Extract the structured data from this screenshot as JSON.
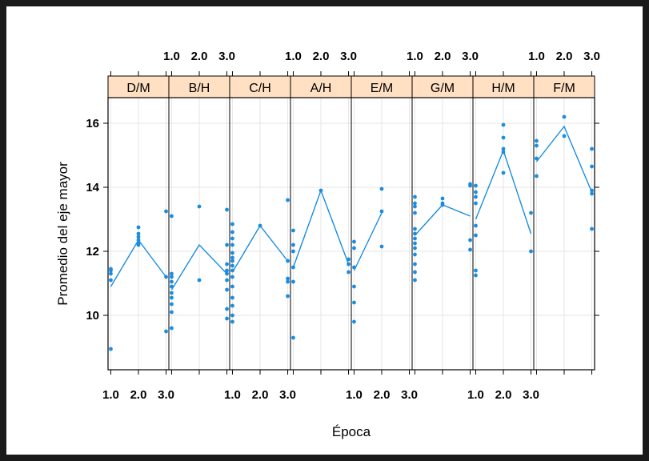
{
  "chart_data": {
    "type": "scatter",
    "xlabel": "Época",
    "ylabel": "Promedio del eje mayor",
    "x_ticks": [
      "1.0",
      "2.0",
      "3.0"
    ],
    "xlim": [
      0.9,
      3.1
    ],
    "ylim": [
      8.3,
      16.8
    ],
    "y_ticks": [
      10,
      12,
      14,
      16
    ],
    "grid": true,
    "colors": {
      "points": "#1a8de0",
      "line": "#1a8de0",
      "strip": "#ffe0c2",
      "grid": "#e6e6e6"
    },
    "panels": [
      {
        "label": "D/M",
        "line": [
          [
            1,
            10.9
          ],
          [
            2,
            12.35
          ],
          [
            3,
            11.2
          ]
        ],
        "points": [
          [
            1,
            11.45
          ],
          [
            1,
            11.4
          ],
          [
            1,
            11.3
          ],
          [
            1,
            11.1
          ],
          [
            1,
            8.95
          ],
          [
            2,
            12.75
          ],
          [
            2,
            12.55
          ],
          [
            2,
            12.45
          ],
          [
            2,
            12.35
          ],
          [
            2,
            12.25
          ],
          [
            2,
            12.2
          ],
          [
            3,
            13.25
          ],
          [
            3,
            11.2
          ],
          [
            3,
            9.5
          ]
        ]
      },
      {
        "label": "B/H",
        "line": [
          [
            1,
            10.8
          ],
          [
            2,
            12.2
          ],
          [
            3,
            11.3
          ]
        ],
        "points": [
          [
            1,
            13.1
          ],
          [
            1,
            11.3
          ],
          [
            1,
            11.2
          ],
          [
            1,
            11.05
          ],
          [
            1,
            10.9
          ],
          [
            1,
            10.7
          ],
          [
            1,
            10.55
          ],
          [
            1,
            10.35
          ],
          [
            1,
            10.1
          ],
          [
            1,
            9.6
          ],
          [
            2,
            13.4
          ],
          [
            2,
            11.1
          ],
          [
            3,
            13.3
          ],
          [
            3,
            12.2
          ],
          [
            3,
            11.6
          ],
          [
            3,
            11.4
          ],
          [
            3,
            11.3
          ],
          [
            3,
            11.1
          ],
          [
            3,
            10.8
          ],
          [
            3,
            10.2
          ],
          [
            3,
            9.9
          ]
        ]
      },
      {
        "label": "C/H",
        "line": [
          [
            1,
            11.35
          ],
          [
            2,
            12.8
          ],
          [
            3,
            11.7
          ]
        ],
        "points": [
          [
            1,
            12.85
          ],
          [
            1,
            12.6
          ],
          [
            1,
            12.4
          ],
          [
            1,
            12.2
          ],
          [
            1,
            11.95
          ],
          [
            1,
            11.8
          ],
          [
            1,
            11.7
          ],
          [
            1,
            11.55
          ],
          [
            1,
            11.4
          ],
          [
            1,
            11.2
          ],
          [
            1,
            10.9
          ],
          [
            1,
            10.55
          ],
          [
            1,
            10.3
          ],
          [
            1,
            10.0
          ],
          [
            1,
            9.8
          ],
          [
            2,
            12.8
          ],
          [
            3,
            13.6
          ],
          [
            3,
            11.7
          ],
          [
            3,
            11.15
          ],
          [
            3,
            11.05
          ],
          [
            3,
            10.6
          ]
        ]
      },
      {
        "label": "A/H",
        "line": [
          [
            1,
            11.5
          ],
          [
            2,
            13.9
          ],
          [
            3,
            11.6
          ]
        ],
        "points": [
          [
            1,
            12.65
          ],
          [
            1,
            12.2
          ],
          [
            1,
            12.0
          ],
          [
            1,
            11.5
          ],
          [
            1,
            11.05
          ],
          [
            1,
            9.3
          ],
          [
            2,
            13.9
          ],
          [
            3,
            11.75
          ],
          [
            3,
            11.6
          ],
          [
            3,
            11.35
          ]
        ]
      },
      {
        "label": "E/M",
        "line": [
          [
            1,
            11.4
          ],
          [
            2,
            13.2
          ]
        ],
        "points": [
          [
            1,
            12.3
          ],
          [
            1,
            12.1
          ],
          [
            1,
            11.5
          ],
          [
            1,
            10.9
          ],
          [
            1,
            10.4
          ],
          [
            1,
            9.8
          ],
          [
            2,
            13.95
          ],
          [
            2,
            13.25
          ],
          [
            2,
            12.15
          ]
        ]
      },
      {
        "label": "G/M",
        "line": [
          [
            1,
            12.5
          ],
          [
            2,
            13.45
          ],
          [
            3,
            13.1
          ]
        ],
        "points": [
          [
            1,
            13.7
          ],
          [
            1,
            13.5
          ],
          [
            1,
            13.4
          ],
          [
            1,
            13.2
          ],
          [
            1,
            12.7
          ],
          [
            1,
            12.55
          ],
          [
            1,
            12.4
          ],
          [
            1,
            12.25
          ],
          [
            1,
            12.1
          ],
          [
            1,
            11.9
          ],
          [
            1,
            11.6
          ],
          [
            1,
            11.35
          ],
          [
            1,
            11.1
          ],
          [
            2,
            13.65
          ],
          [
            2,
            13.5
          ],
          [
            2,
            13.45
          ],
          [
            3,
            14.1
          ],
          [
            3,
            14.05
          ],
          [
            3,
            12.35
          ],
          [
            3,
            12.05
          ]
        ]
      },
      {
        "label": "H/M",
        "line": [
          [
            1,
            13.0
          ],
          [
            2,
            15.15
          ],
          [
            3,
            12.55
          ]
        ],
        "points": [
          [
            1,
            14.05
          ],
          [
            1,
            13.85
          ],
          [
            1,
            13.7
          ],
          [
            1,
            13.5
          ],
          [
            1,
            12.8
          ],
          [
            1,
            12.5
          ],
          [
            1,
            11.4
          ],
          [
            1,
            11.25
          ],
          [
            2,
            15.95
          ],
          [
            2,
            15.55
          ],
          [
            2,
            15.2
          ],
          [
            2,
            15.1
          ],
          [
            2,
            14.45
          ],
          [
            3,
            13.2
          ],
          [
            3,
            12.0
          ]
        ]
      },
      {
        "label": "F/M",
        "line": [
          [
            1,
            14.8
          ],
          [
            2,
            15.9
          ],
          [
            3,
            13.85
          ]
        ],
        "points": [
          [
            1,
            15.45
          ],
          [
            1,
            15.3
          ],
          [
            1,
            14.9
          ],
          [
            1,
            14.35
          ],
          [
            2,
            16.2
          ],
          [
            2,
            15.6
          ],
          [
            3,
            15.2
          ],
          [
            3,
            14.65
          ],
          [
            3,
            13.9
          ],
          [
            3,
            13.8
          ],
          [
            3,
            12.7
          ]
        ]
      }
    ]
  }
}
